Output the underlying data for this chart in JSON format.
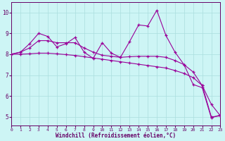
{
  "bg_color": "#cdf5f5",
  "line_color": "#990099",
  "grid_color": "#aadddd",
  "xlim": [
    0,
    23
  ],
  "ylim": [
    4.6,
    10.5
  ],
  "xticks": [
    0,
    1,
    2,
    3,
    4,
    5,
    6,
    7,
    8,
    9,
    10,
    11,
    12,
    13,
    14,
    15,
    16,
    17,
    18,
    19,
    20,
    21,
    22,
    23
  ],
  "yticks": [
    5,
    6,
    7,
    8,
    9,
    10
  ],
  "xlabel": "Windchill (Refroidissement éolien,°C)",
  "series1_y": [
    8.0,
    8.1,
    8.5,
    9.0,
    8.85,
    8.35,
    8.5,
    8.8,
    8.1,
    7.8,
    8.55,
    8.05,
    7.85,
    8.6,
    9.4,
    9.35,
    10.1,
    8.9,
    8.1,
    7.5,
    6.55,
    6.4,
    4.95,
    5.1
  ],
  "series2_y": [
    8.0,
    8.1,
    8.3,
    8.65,
    8.65,
    8.55,
    8.55,
    8.55,
    8.3,
    8.1,
    7.95,
    7.9,
    7.85,
    7.88,
    7.9,
    7.9,
    7.9,
    7.85,
    7.7,
    7.5,
    7.15,
    6.5,
    5.0,
    5.05
  ],
  "series3_y": [
    8.0,
    8.0,
    8.02,
    8.05,
    8.05,
    8.02,
    7.98,
    7.94,
    7.88,
    7.82,
    7.76,
    7.7,
    7.64,
    7.58,
    7.52,
    7.46,
    7.4,
    7.34,
    7.22,
    7.08,
    6.88,
    6.5,
    5.6,
    5.05
  ]
}
